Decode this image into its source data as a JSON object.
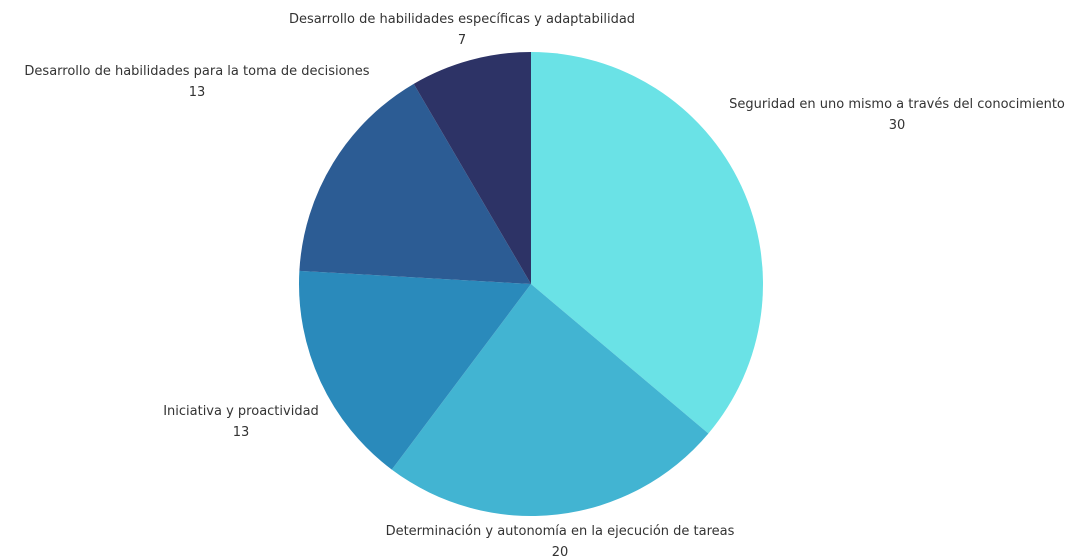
{
  "chart_data": {
    "type": "pie",
    "title": "",
    "series": [
      {
        "values": [
          30,
          20,
          13,
          13,
          7
        ]
      }
    ],
    "categories": [
      "Seguridad en uno mismo a través del conocimiento",
      "Determinación y autonomía en la ejecución de tareas",
      "Iniciativa y proactividad",
      "Desarrollo de habilidades para la toma de decisiones",
      "Desarrollo de habilidades específicas y adaptabilidad"
    ],
    "slices": [
      {
        "label": "Seguridad en uno mismo a través del conocimiento",
        "value": 30,
        "color": "#6AE2E6"
      },
      {
        "label": "Determinación y autonomía en la ejecución de tareas",
        "value": 20,
        "color": "#42B4D2"
      },
      {
        "label": "Iniciativa y proactividad",
        "value": 13,
        "color": "#2A8ABB"
      },
      {
        "label": "Desarrollo de habilidades para la toma de decisiones",
        "value": 13,
        "color": "#2C5C94"
      },
      {
        "label": "Desarrollo de habilidades específicas y adaptabilidad",
        "value": 7,
        "color": "#2D3366"
      }
    ],
    "start_angle_deg": 0,
    "direction": "clockwise",
    "legend": "none"
  }
}
